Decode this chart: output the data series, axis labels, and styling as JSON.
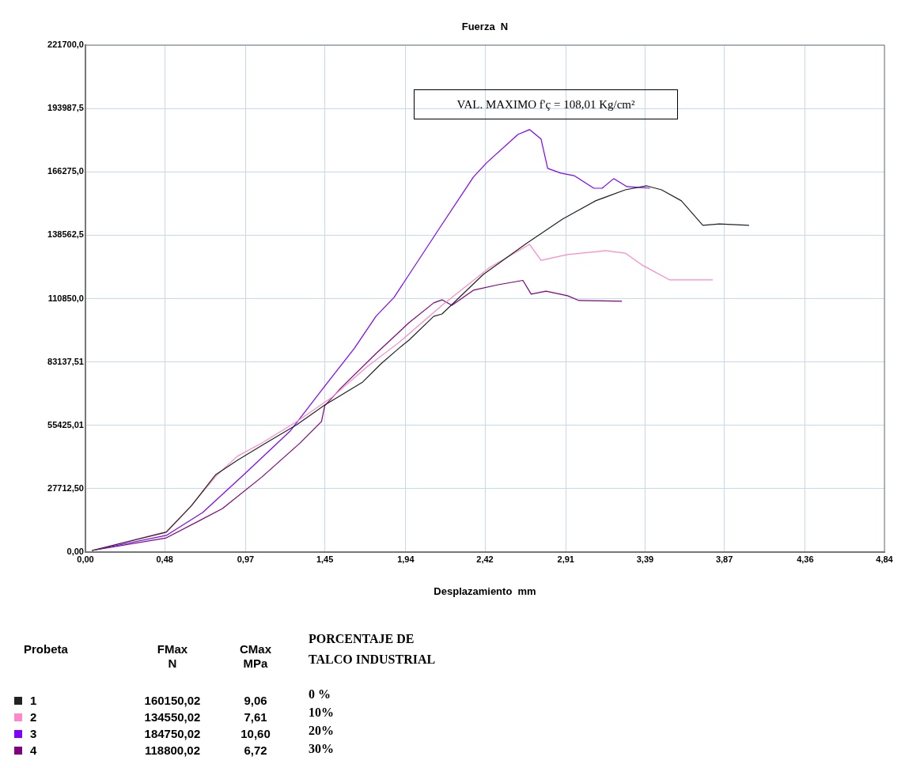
{
  "chart_data": {
    "type": "line",
    "title": "Fuerza  N",
    "xlabel": "Desplazamiento  mm",
    "legend_title": "Probeta",
    "legend": "bottom left",
    "grid": true,
    "marker": "none",
    "line_style": "solid",
    "xlim": [
      0,
      4.84
    ],
    "ylim": [
      0,
      221700
    ],
    "xticks": [
      {
        "value": 0,
        "label": "0,00"
      },
      {
        "value": 0.48,
        "label": "0,48"
      },
      {
        "value": 0.97,
        "label": "0,97"
      },
      {
        "value": 1.45,
        "label": "1,45"
      },
      {
        "value": 1.94,
        "label": "1,94"
      },
      {
        "value": 2.42,
        "label": "2,42"
      },
      {
        "value": 2.91,
        "label": "2,91"
      },
      {
        "value": 3.39,
        "label": "3,39"
      },
      {
        "value": 3.87,
        "label": "3,87"
      },
      {
        "value": 4.36,
        "label": "4,36"
      },
      {
        "value": 4.84,
        "label": "4,84"
      }
    ],
    "yticks": [
      {
        "value": 0,
        "label": "0,00"
      },
      {
        "value": 27712.5,
        "label": "27712,50"
      },
      {
        "value": 55425.01,
        "label": "55425,01"
      },
      {
        "value": 83137.51,
        "label": "83137,51"
      },
      {
        "value": 110850,
        "label": "110850,0"
      },
      {
        "value": 138562.5,
        "label": "138562,5"
      },
      {
        "value": 166275,
        "label": "166275,0"
      },
      {
        "value": 193987.5,
        "label": "193987,5"
      },
      {
        "value": 221700,
        "label": "221700,0"
      }
    ],
    "annotations": [
      "VAL. MAXIMO f'ç = 108,01 Kg/cm²",
      "FMax\nN",
      "CMax\nMPa",
      "PORCENTAJE DE\nTALCO INDUSTRIAL",
      "160150,02",
      "9,06",
      "0 %",
      "134550,02",
      "7,61",
      "10%",
      "184750,02",
      "10,60",
      "20%",
      "118800,02",
      "6,72",
      "30%"
    ],
    "series": [
      {
        "name": "1",
        "color": "#222222",
        "x": [
          0.04,
          0.49,
          0.64,
          0.79,
          0.92,
          1.07,
          1.28,
          1.45,
          1.68,
          1.79,
          1.9,
          1.96,
          2.11,
          2.16,
          2.41,
          2.67,
          2.89,
          3.09,
          3.27,
          3.4,
          3.49,
          3.61,
          3.74,
          3.84,
          4.02
        ],
        "values": [
          700,
          8700,
          20100,
          33900,
          40100,
          46700,
          55700,
          64300,
          74400,
          82300,
          89200,
          92700,
          103100,
          104100,
          121400,
          134900,
          145600,
          153600,
          158400,
          160150,
          158400,
          153600,
          142900,
          143500,
          142900
        ]
      },
      {
        "name": "2",
        "color": "#ff88c8",
        "x": [
          0.04,
          0.49,
          0.64,
          0.79,
          0.92,
          1.07,
          1.28,
          1.49,
          1.71,
          1.9,
          2.16,
          2.45,
          2.69,
          2.76,
          2.92,
          3.15,
          3.27,
          3.37,
          3.54,
          3.8
        ],
        "values": [
          700,
          9000,
          20100,
          33200,
          41900,
          47700,
          57100,
          67500,
          81300,
          91700,
          107900,
          124500,
          134550,
          127600,
          130100,
          131800,
          130700,
          125600,
          119000,
          119000
        ]
      },
      {
        "name": "3",
        "color": "#8000ff",
        "x": [
          0.04,
          0.49,
          0.71,
          0.96,
          1.24,
          1.45,
          1.63,
          1.76,
          1.87,
          2.14,
          2.35,
          2.43,
          2.62,
          2.69,
          2.76,
          2.8,
          2.88,
          2.96,
          3.08,
          3.13,
          3.2,
          3.28,
          3.42
        ],
        "values": [
          700,
          7300,
          17300,
          33900,
          52900,
          72600,
          89200,
          103100,
          111400,
          141100,
          164000,
          170200,
          182600,
          184750,
          180600,
          167800,
          165700,
          164600,
          159100,
          159100,
          163300,
          159800,
          159100
        ]
      },
      {
        "name": "4",
        "color": "#800080",
        "x": [
          0.04,
          0.49,
          0.83,
          1.07,
          1.3,
          1.43,
          1.45,
          1.55,
          1.76,
          1.96,
          2.11,
          2.16,
          2.22,
          2.35,
          2.5,
          2.65,
          2.7,
          2.79,
          2.92,
          2.99,
          3.25
        ],
        "values": [
          700,
          6200,
          19000,
          32900,
          47700,
          57100,
          64000,
          71900,
          86800,
          100300,
          109000,
          110300,
          107900,
          114500,
          116900,
          118800,
          112800,
          114100,
          112100,
          110000,
          109700
        ]
      }
    ]
  }
}
